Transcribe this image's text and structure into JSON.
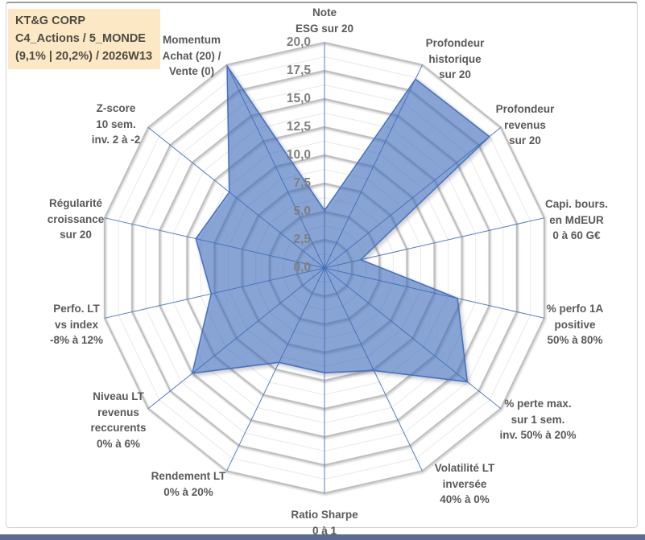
{
  "title_box": {
    "lines": [
      "KT&G CORP",
      "C4_Actions / 5_MONDE",
      "(9,1% | 20,2%) / 2026W13"
    ],
    "bg_color": "#FCE8C4",
    "text_color": "#4C4B43"
  },
  "chart_data": {
    "type": "radar",
    "series_name": "KT&G CORP",
    "categories": [
      "Note ESG sur 20",
      "Profondeur historique sur 20",
      "Profondeur revenus sur 20",
      "Capi. bours. en MdEUR 0 à 60 G€",
      "% perfo 1A positive 50% à 80%",
      "% perte max. sur 1 sem. inv. 50% à 20%",
      "Volatilité LT inversée 40% à 0%",
      "Ratio Sharpe 0 à 1",
      "Rendement LT 0% à 20%",
      "Niveau LT revenus reccurents 0% à 6%",
      "Perfo. LT vs index -8% à 12%",
      "Régularité croissance sur 20",
      "Z-score 10 sem. inv. 2 à -2",
      "Momentum Achat (20) / Vente (0)"
    ],
    "axis_label_lines": [
      [
        "Note",
        "ESG sur 20"
      ],
      [
        "Profondeur",
        "historique",
        "sur 20"
      ],
      [
        "Profondeur",
        "revenus",
        "sur 20"
      ],
      [
        "Capi. bours.",
        "en MdEUR",
        "0 à 60 G€"
      ],
      [
        "% perfo 1A",
        "positive",
        "50% à 80%"
      ],
      [
        "% perte max.",
        "sur 1 sem.",
        "inv. 50% à 20%"
      ],
      [
        "Volatilité LT",
        "inversée",
        "40% à 0%"
      ],
      [
        "Ratio Sharpe",
        "0 à 1"
      ],
      [
        "Rendement LT",
        "0% à 20%"
      ],
      [
        "Niveau LT",
        "revenus",
        "reccurents",
        "0% à 6%"
      ],
      [
        "Perfo. LT",
        "vs index",
        "-8% à 12%"
      ],
      [
        "Régularité",
        "croissance",
        "sur 20"
      ],
      [
        "Z-score",
        "10 sem.",
        "inv. 2 à -2"
      ],
      [
        "Momentum",
        "Achat (20) /",
        "Vente (0)"
      ]
    ],
    "values": [
      5.1,
      18.6,
      18.7,
      3.3,
      12.1,
      16.2,
      10.1,
      9.3,
      9.3,
      15.0,
      10.3,
      11.7,
      10.8,
      19.9
    ],
    "rmin": 0,
    "rmax": 20,
    "major_grid_step": 2.5,
    "minor_grid_step": 1.25,
    "grid": "on",
    "legend": "none",
    "tick_labels": [
      "20,0",
      "17,5",
      "15,0",
      "12,5",
      "10,0",
      "7,5",
      "5,0",
      "2,5",
      "0,0"
    ],
    "colors": {
      "series_fill": "#4472C4",
      "series_fill_opacity": 0.55,
      "series_stroke": "#4472C4",
      "spoke_color": "#4F7CC0",
      "major_grid_color": "#BFBFBF",
      "minor_grid_color": "#E9E9E9",
      "tick_label_color": "#7F7F7F",
      "axis_label_color": "#595959"
    }
  },
  "window": {
    "bottom_bar_color": "#5D6C8E"
  }
}
